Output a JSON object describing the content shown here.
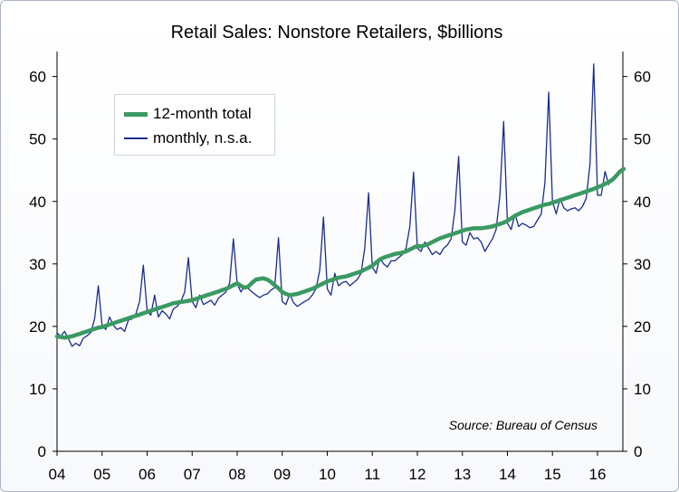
{
  "chart_data": {
    "type": "line",
    "title": "Retail Sales: Nonstore Retailers, $billions",
    "xlabel": "",
    "ylabel": "",
    "x_tick_labels": [
      "04",
      "05",
      "06",
      "07",
      "08",
      "09",
      "10",
      "11",
      "12",
      "13",
      "14",
      "15",
      "16"
    ],
    "y_ticks": [
      0,
      10,
      20,
      30,
      40,
      50,
      60
    ],
    "ylim": [
      0,
      64
    ],
    "dual_y_axis": true,
    "grid": false,
    "legend_position": "top-left",
    "source": "Source: Bureau of Census",
    "series": [
      {
        "name": "12-month total",
        "color": "#3a9a62",
        "style": "thick",
        "start": "2004-01",
        "frequency": "monthly",
        "values": [
          18.4,
          18.3,
          18.2,
          18.3,
          18.4,
          18.6,
          18.8,
          19.0,
          19.2,
          19.4,
          19.6,
          19.8,
          19.9,
          20.1,
          20.3,
          20.5,
          20.7,
          20.9,
          21.1,
          21.3,
          21.5,
          21.7,
          21.9,
          22.1,
          22.3,
          22.5,
          22.7,
          22.9,
          23.1,
          23.3,
          23.5,
          23.7,
          23.8,
          23.9,
          24.0,
          24.1,
          24.2,
          24.4,
          24.6,
          24.8,
          25.0,
          25.2,
          25.4,
          25.6,
          25.8,
          26.0,
          26.3,
          26.6,
          26.9,
          26.5,
          26.2,
          26.4,
          27.0,
          27.5,
          27.6,
          27.7,
          27.5,
          27.1,
          26.6,
          26.1,
          25.5,
          25.2,
          25.0,
          25.1,
          25.2,
          25.4,
          25.6,
          25.8,
          26.0,
          26.3,
          26.6,
          26.9,
          27.2,
          27.4,
          27.6,
          27.8,
          27.9,
          28.0,
          28.2,
          28.4,
          28.6,
          28.8,
          29.1,
          29.4,
          29.7,
          30.2,
          30.7,
          31.0,
          31.2,
          31.4,
          31.6,
          31.7,
          31.8,
          32.0,
          32.3,
          32.6,
          32.9,
          32.8,
          33.0,
          33.2,
          33.5,
          33.8,
          34.1,
          34.3,
          34.5,
          34.7,
          34.9,
          35.1,
          35.3,
          35.5,
          35.6,
          35.7,
          35.7,
          35.7,
          35.8,
          35.9,
          36.0,
          36.2,
          36.4,
          36.6,
          36.9,
          37.3,
          37.7,
          38.0,
          38.3,
          38.5,
          38.7,
          38.9,
          39.1,
          39.3,
          39.5,
          39.6,
          39.8,
          40.0,
          40.2,
          40.4,
          40.6,
          40.8,
          41.0,
          41.2,
          41.4,
          41.6,
          41.8,
          42.0,
          42.3,
          42.5,
          42.8,
          43.1,
          43.5,
          44.1,
          44.8,
          45.2
        ]
      },
      {
        "name": "monthly, n.s.a.",
        "color": "#1a2e8c",
        "style": "thin",
        "start": "2004-01",
        "frequency": "monthly",
        "values": [
          19.0,
          18.4,
          19.2,
          18.1,
          16.8,
          17.3,
          16.9,
          18.1,
          18.5,
          19.0,
          21.2,
          26.5,
          20.2,
          19.5,
          21.5,
          20.2,
          19.5,
          19.8,
          19.2,
          21.0,
          21.2,
          22.0,
          24.0,
          29.8,
          22.5,
          21.8,
          25.0,
          21.5,
          22.5,
          22.0,
          21.2,
          22.8,
          23.2,
          24.0,
          25.5,
          31.0,
          24.0,
          23.0,
          25.0,
          23.5,
          23.8,
          24.2,
          23.4,
          24.5,
          25.0,
          25.5,
          27.0,
          34.0,
          26.8,
          25.5,
          26.5,
          26.0,
          25.5,
          25.0,
          24.6,
          25.0,
          25.2,
          25.8,
          26.2,
          34.2,
          24.0,
          23.5,
          25.2,
          23.8,
          23.2,
          23.6,
          24.0,
          24.3,
          25.0,
          26.0,
          29.0,
          37.5,
          26.0,
          25.0,
          28.5,
          26.5,
          27.0,
          27.2,
          26.5,
          27.0,
          27.5,
          28.5,
          32.5,
          41.4,
          29.5,
          28.5,
          31.0,
          30.0,
          29.5,
          30.5,
          30.5,
          31.0,
          31.5,
          32.5,
          36.0,
          44.7,
          32.5,
          32.0,
          33.5,
          32.5,
          31.5,
          32.0,
          31.5,
          32.5,
          33.0,
          34.0,
          38.5,
          47.2,
          33.5,
          33.0,
          35.0,
          34.0,
          34.2,
          33.5,
          32.0,
          33.0,
          34.0,
          35.5,
          41.0,
          52.8,
          36.5,
          35.5,
          38.0,
          36.0,
          36.5,
          36.2,
          35.8,
          36.0,
          37.0,
          38.0,
          43.0,
          57.5,
          40.0,
          38.0,
          40.5,
          39.0,
          38.5,
          38.8,
          39.0,
          38.5,
          39.2,
          40.5,
          46.0,
          62.0,
          41.0,
          41.0,
          44.8,
          42.7
        ]
      }
    ]
  }
}
